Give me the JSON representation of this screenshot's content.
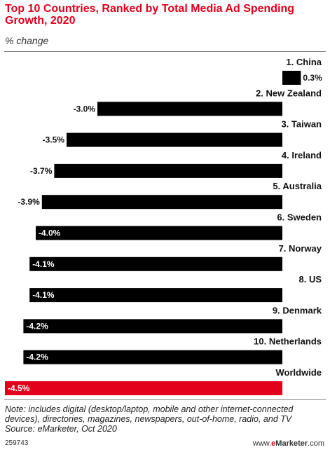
{
  "title": "Top 10 Countries, Ranked by Total Media Ad Spending Growth, 2020",
  "subtitle": "% change",
  "note": "Note: includes digital (desktop/laptop, mobile and other internet-connected devices), directories, magazines, newspapers, out-of-home, radio, and TV",
  "source": "Source: eMarketer, Oct 2020",
  "chart_id": "259743",
  "brand": {
    "prefix": "www.",
    "e": "e",
    "name": "Marketer",
    "suffix": ".com"
  },
  "colors": {
    "title": "#e3001b",
    "bar": "#000000",
    "highlight": "#e3001b"
  },
  "chart_data": {
    "type": "bar",
    "orientation": "horizontal",
    "title": "Top 10 Countries, Ranked by Total Media Ad Spending Growth, 2020",
    "subtitle": "% change",
    "categories": [
      "1. China",
      "2. New Zealand",
      "3. Taiwan",
      "4. Ireland",
      "5. Australia",
      "6. Sweden",
      "7. Norway",
      "8. US",
      "9. Denmark",
      "10. Netherlands",
      "Worldwide"
    ],
    "values": [
      0.3,
      -3.0,
      -3.5,
      -3.7,
      -3.9,
      -4.0,
      -4.1,
      -4.1,
      -4.2,
      -4.2,
      -4.5
    ],
    "labels": [
      "0.3%",
      "-3.0%",
      "-3.5%",
      "-3.7%",
      "-3.9%",
      "-4.0%",
      "-4.1%",
      "-4.1%",
      "-4.2%",
      "-4.2%",
      "-4.5%"
    ],
    "highlight": "Worldwide",
    "xlim": [
      -4.5,
      0.3
    ],
    "grid": false,
    "legend": "none"
  }
}
